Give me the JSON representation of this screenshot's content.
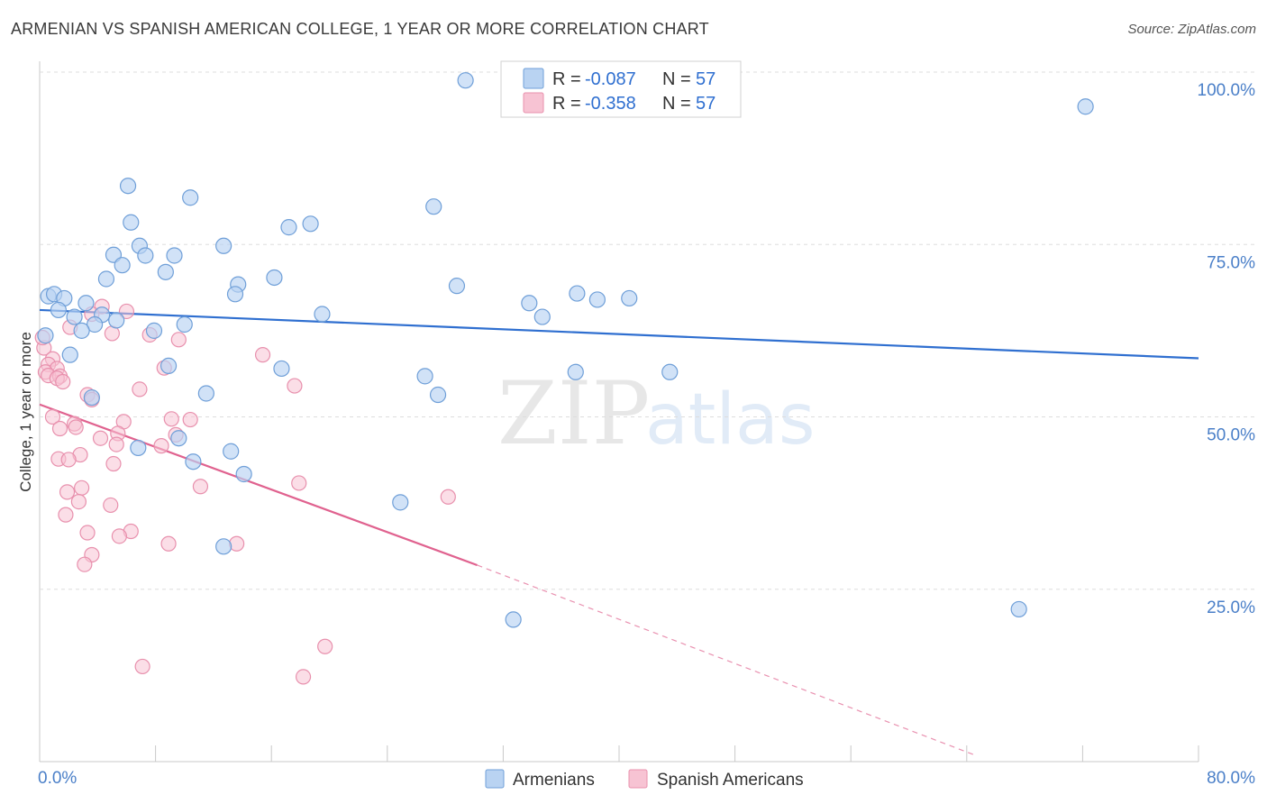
{
  "title": "ARMENIAN VS SPANISH AMERICAN COLLEGE, 1 YEAR OR MORE CORRELATION CHART",
  "source": "Source: ZipAtlas.com",
  "watermark": {
    "zip": "ZIP",
    "atlas": "atlas"
  },
  "legend": {
    "r_label": "R =",
    "n_label": "N =",
    "rows": [
      {
        "series": "Armenians",
        "r": "-0.087",
        "n": "57"
      },
      {
        "series": "Spanish Americans",
        "r": "-0.358",
        "n": "57"
      }
    ]
  },
  "colors": {
    "armenian_fill": "#b9d3f2",
    "armenian_stroke": "#6f9fd8",
    "armenian_line": "#2f6fd0",
    "spanish_fill": "#f7c3d3",
    "spanish_stroke": "#e890ad",
    "spanish_line": "#e0628f",
    "tick_text": "#4a7fc8",
    "grid": "#dddddd"
  },
  "chart_data": {
    "type": "scatter",
    "title": "ARMENIAN VS SPANISH AMERICAN COLLEGE, 1 YEAR OR MORE CORRELATION CHART",
    "xlabel": "",
    "ylabel": "College, 1 year or more",
    "xlim": [
      0,
      80
    ],
    "ylim": [
      0,
      100
    ],
    "x_tick_labels": [
      "0.0%",
      "80.0%"
    ],
    "y_ticks": [
      {
        "value": 25,
        "label": "25.0%"
      },
      {
        "value": 50,
        "label": "50.0%"
      },
      {
        "value": 75,
        "label": "75.0%"
      },
      {
        "value": 100,
        "label": "100.0%"
      }
    ],
    "grid": true,
    "legend_bottom": [
      "Armenians",
      "Spanish Americans"
    ],
    "series": [
      {
        "name": "Armenians",
        "r": -0.087,
        "n": 57,
        "trend": {
          "x0": 0,
          "y0": 65.5,
          "x1": 80,
          "y1": 58.5
        },
        "points": [
          [
            29.4,
            98.8
          ],
          [
            72.2,
            95.0
          ],
          [
            6.1,
            83.5
          ],
          [
            10.4,
            81.8
          ],
          [
            27.2,
            80.5
          ],
          [
            6.3,
            78.2
          ],
          [
            18.7,
            78.0
          ],
          [
            17.2,
            77.5
          ],
          [
            6.9,
            74.8
          ],
          [
            12.7,
            74.8
          ],
          [
            5.1,
            73.5
          ],
          [
            7.3,
            73.4
          ],
          [
            9.3,
            73.4
          ],
          [
            5.7,
            72.0
          ],
          [
            8.7,
            71.0
          ],
          [
            4.6,
            70.0
          ],
          [
            16.2,
            70.2
          ],
          [
            13.7,
            69.2
          ],
          [
            28.8,
            69.0
          ],
          [
            13.5,
            67.8
          ],
          [
            37.1,
            67.9
          ],
          [
            0.6,
            67.5
          ],
          [
            1.0,
            67.8
          ],
          [
            1.7,
            67.2
          ],
          [
            38.5,
            67.0
          ],
          [
            40.7,
            67.2
          ],
          [
            3.2,
            66.5
          ],
          [
            33.8,
            66.5
          ],
          [
            19.5,
            64.9
          ],
          [
            1.3,
            65.5
          ],
          [
            34.7,
            64.5
          ],
          [
            2.4,
            64.5
          ],
          [
            4.3,
            64.8
          ],
          [
            5.3,
            64.0
          ],
          [
            3.8,
            63.4
          ],
          [
            10.0,
            63.4
          ],
          [
            7.9,
            62.5
          ],
          [
            2.9,
            62.5
          ],
          [
            0.4,
            61.8
          ],
          [
            2.1,
            59.0
          ],
          [
            8.9,
            57.4
          ],
          [
            16.7,
            57.0
          ],
          [
            37.0,
            56.5
          ],
          [
            43.5,
            56.5
          ],
          [
            26.6,
            55.9
          ],
          [
            11.5,
            53.4
          ],
          [
            27.5,
            53.2
          ],
          [
            3.6,
            52.8
          ],
          [
            9.6,
            46.9
          ],
          [
            6.8,
            45.5
          ],
          [
            13.2,
            45.0
          ],
          [
            10.6,
            43.5
          ],
          [
            14.1,
            41.7
          ],
          [
            24.9,
            37.6
          ],
          [
            12.7,
            31.2
          ],
          [
            32.7,
            20.6
          ],
          [
            67.6,
            22.1
          ]
        ]
      },
      {
        "name": "Spanish Americans",
        "r": -0.358,
        "n": 57,
        "trend": {
          "x0": 0,
          "y0": 51.8,
          "x1": 30.2,
          "y1": 28.5
        },
        "trend_dashed": {
          "x0": 30.2,
          "y0": 28.5,
          "x1": 64.5,
          "y1": 1.0
        },
        "points": [
          [
            4.3,
            66.0
          ],
          [
            6.0,
            65.3
          ],
          [
            3.6,
            64.9
          ],
          [
            2.1,
            63.0
          ],
          [
            5.0,
            62.1
          ],
          [
            7.6,
            61.9
          ],
          [
            9.6,
            61.2
          ],
          [
            0.3,
            60.0
          ],
          [
            0.9,
            58.4
          ],
          [
            15.4,
            59.0
          ],
          [
            0.6,
            57.6
          ],
          [
            8.6,
            57.1
          ],
          [
            1.2,
            57.0
          ],
          [
            0.4,
            56.5
          ],
          [
            0.6,
            56.0
          ],
          [
            1.4,
            55.9
          ],
          [
            1.2,
            55.6
          ],
          [
            1.6,
            55.1
          ],
          [
            17.6,
            54.5
          ],
          [
            6.9,
            54.0
          ],
          [
            3.3,
            53.2
          ],
          [
            3.6,
            52.5
          ],
          [
            0.9,
            50.0
          ],
          [
            9.1,
            49.7
          ],
          [
            10.4,
            49.6
          ],
          [
            5.8,
            49.3
          ],
          [
            2.4,
            49.0
          ],
          [
            2.5,
            48.5
          ],
          [
            1.4,
            48.3
          ],
          [
            5.4,
            47.6
          ],
          [
            9.4,
            47.4
          ],
          [
            4.2,
            46.9
          ],
          [
            5.3,
            46.0
          ],
          [
            8.4,
            45.8
          ],
          [
            2.8,
            44.5
          ],
          [
            1.3,
            43.9
          ],
          [
            2.0,
            43.8
          ],
          [
            5.1,
            43.2
          ],
          [
            17.9,
            40.4
          ],
          [
            11.1,
            39.9
          ],
          [
            2.9,
            39.7
          ],
          [
            1.9,
            39.1
          ],
          [
            28.2,
            38.4
          ],
          [
            2.7,
            37.7
          ],
          [
            4.9,
            37.2
          ],
          [
            1.8,
            35.8
          ],
          [
            6.3,
            33.4
          ],
          [
            3.3,
            33.2
          ],
          [
            5.5,
            32.7
          ],
          [
            8.9,
            31.6
          ],
          [
            13.6,
            31.6
          ],
          [
            3.6,
            30.0
          ],
          [
            3.1,
            28.6
          ],
          [
            19.7,
            16.7
          ],
          [
            7.1,
            13.8
          ],
          [
            18.2,
            12.3
          ],
          [
            0.2,
            61.5
          ]
        ]
      }
    ]
  }
}
